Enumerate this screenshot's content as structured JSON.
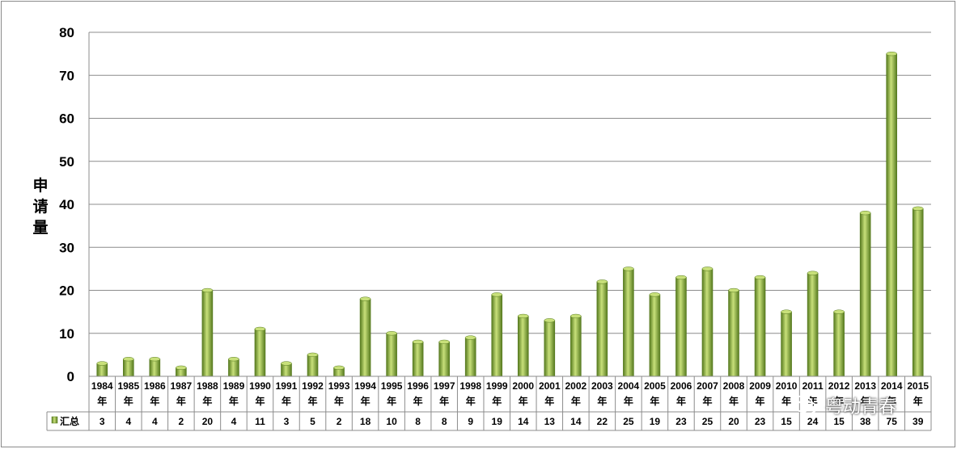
{
  "chart_data": {
    "type": "bar",
    "ylabel": "申请量",
    "ylim": [
      0,
      80
    ],
    "yticks": [
      0,
      10,
      20,
      30,
      40,
      50,
      60,
      70,
      80
    ],
    "grid": true,
    "categories": [
      "1984年",
      "1985年",
      "1986年",
      "1987年",
      "1988年",
      "1989年",
      "1990年",
      "1991年",
      "1992年",
      "1993年",
      "1994年",
      "1995年",
      "1996年",
      "1997年",
      "1998年",
      "1999年",
      "2000年",
      "2001年",
      "2002年",
      "2003年",
      "2004年",
      "2005年",
      "2006年",
      "2007年",
      "2008年",
      "2009年",
      "2010年",
      "2011年",
      "2012年",
      "2013年",
      "2014年",
      "2015年"
    ],
    "series": [
      {
        "name": "汇总",
        "values": [
          3,
          4,
          4,
          2,
          20,
          4,
          11,
          3,
          5,
          2,
          18,
          10,
          8,
          8,
          9,
          19,
          14,
          13,
          14,
          22,
          25,
          19,
          23,
          25,
          20,
          23,
          15,
          24,
          15,
          38,
          75,
          39
        ]
      }
    ],
    "data_table": true,
    "bar_color": "#8db83a",
    "bar_color_dark": "#567a1f",
    "bar_color_light": "#c8e07a"
  },
  "watermark": {
    "text": "粤动青春",
    "icon": "wechat-icon"
  }
}
